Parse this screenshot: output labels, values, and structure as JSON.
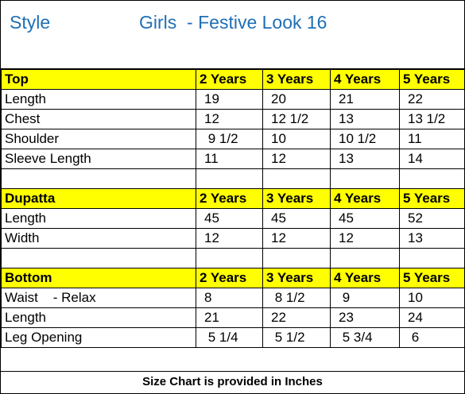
{
  "header": {
    "style_label": "Style",
    "title": "Girls  - Festive Look 16"
  },
  "age_columns": [
    "2 Years",
    "3 Years",
    "4 Years",
    "5 Years"
  ],
  "sections": [
    {
      "title": "Top",
      "rows": [
        {
          "label": "Length",
          "values": [
            "19",
            "20",
            "21",
            "22"
          ]
        },
        {
          "label": "Chest",
          "values": [
            "12",
            "12 1/2",
            "13",
            "13 1/2"
          ]
        },
        {
          "label": "Shoulder",
          "values": [
            " 9 1/2",
            "10",
            "10 1/2",
            "11"
          ]
        },
        {
          "label": "Sleeve Length",
          "values": [
            "11",
            "12",
            "13",
            "14"
          ]
        }
      ]
    },
    {
      "title": "Dupatta",
      "rows": [
        {
          "label": "Length",
          "values": [
            "45",
            "45",
            "45",
            "52"
          ]
        },
        {
          "label": "Width",
          "values": [
            "12",
            "12",
            "12",
            "13"
          ]
        }
      ]
    },
    {
      "title": "Bottom",
      "rows": [
        {
          "label": "Waist    - Relax",
          "values": [
            "8",
            " 8 1/2",
            " 9",
            "10"
          ]
        },
        {
          "label": "Length",
          "values": [
            "21",
            "22",
            "23",
            "24"
          ]
        },
        {
          "label": "Leg Opening",
          "values": [
            " 5 1/4",
            " 5 1/2",
            " 5 3/4",
            " 6"
          ]
        }
      ]
    }
  ],
  "footer": "Size Chart is provided in Inches",
  "colors": {
    "section_fill": "#ffff00",
    "title_blue": "#1f6fb5"
  }
}
